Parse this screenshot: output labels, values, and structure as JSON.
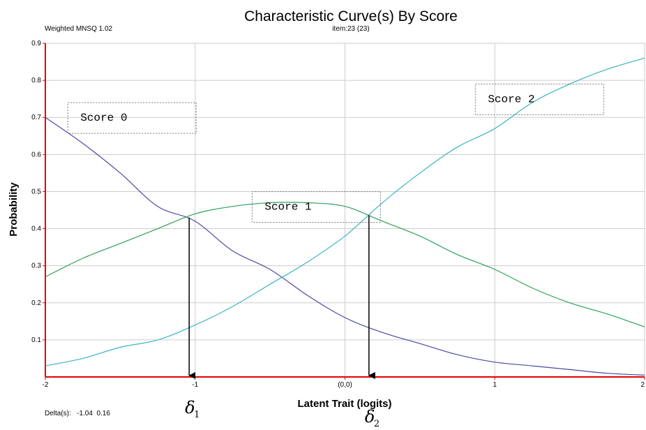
{
  "chart_data": {
    "type": "line",
    "title": "Characteristic Curve(s) By Score",
    "subtitle": "item:23 (23)",
    "xlabel": "Latent Trait (logits)",
    "ylabel": "Probability",
    "xlim": [
      -2,
      2
    ],
    "ylim": [
      0,
      0.9
    ],
    "x_ticks": [
      {
        "value": -2,
        "label": "-2"
      },
      {
        "value": -1,
        "label": "-1"
      },
      {
        "value": 0,
        "label": "(0,0)"
      },
      {
        "value": 1,
        "label": "1"
      },
      {
        "value": 2,
        "label": "2"
      }
    ],
    "y_ticks": [
      {
        "value": 0.1,
        "label": "0.1"
      },
      {
        "value": 0.2,
        "label": "0.2"
      },
      {
        "value": 0.3,
        "label": "0.3"
      },
      {
        "value": 0.4,
        "label": "0.4"
      },
      {
        "value": 0.5,
        "label": "0.5"
      },
      {
        "value": 0.6,
        "label": "0.6"
      },
      {
        "value": 0.7,
        "label": "0.7"
      },
      {
        "value": 0.8,
        "label": "0.8"
      },
      {
        "value": 0.9,
        "label": "0.9"
      }
    ],
    "grid": true,
    "weighted_mnsq_label": "Weighted MNSQ  1.02",
    "deltas_label": "Delta(s):   -1.04  0.16",
    "deltas": [
      -1.04,
      0.16
    ],
    "delta_marker_labels": [
      {
        "symbol": "δ",
        "subscript": "1"
      },
      {
        "symbol": "δ",
        "subscript": "2"
      }
    ],
    "series": [
      {
        "name": "Score 0",
        "color": "#4a4aa6",
        "x": [
          -2.0,
          -1.75,
          -1.5,
          -1.25,
          -1.0,
          -0.75,
          -0.5,
          -0.25,
          0.0,
          0.25,
          0.5,
          0.75,
          1.0,
          1.25,
          1.5,
          1.75,
          2.0
        ],
        "y": [
          0.7,
          0.63,
          0.55,
          0.46,
          0.42,
          0.34,
          0.29,
          0.22,
          0.16,
          0.12,
          0.09,
          0.06,
          0.04,
          0.03,
          0.02,
          0.01,
          0.005
        ]
      },
      {
        "name": "Score 1",
        "color": "#2ea05a",
        "x": [
          -2.0,
          -1.75,
          -1.5,
          -1.25,
          -1.0,
          -0.75,
          -0.5,
          -0.25,
          0.0,
          0.25,
          0.5,
          0.75,
          1.0,
          1.25,
          1.5,
          1.75,
          2.0
        ],
        "y": [
          0.27,
          0.32,
          0.36,
          0.4,
          0.44,
          0.46,
          0.47,
          0.47,
          0.46,
          0.42,
          0.38,
          0.33,
          0.29,
          0.24,
          0.2,
          0.17,
          0.135
        ]
      },
      {
        "name": "Score 2",
        "color": "#3cb4c0",
        "x": [
          -2.0,
          -1.75,
          -1.5,
          -1.25,
          -1.0,
          -0.75,
          -0.5,
          -0.25,
          0.0,
          0.25,
          0.5,
          0.75,
          1.0,
          1.25,
          1.5,
          1.75,
          2.0
        ],
        "y": [
          0.03,
          0.05,
          0.08,
          0.1,
          0.14,
          0.19,
          0.25,
          0.31,
          0.38,
          0.47,
          0.55,
          0.62,
          0.67,
          0.74,
          0.79,
          0.83,
          0.86
        ]
      }
    ],
    "annotations": [
      {
        "text": "Score 0",
        "x": -1.85,
        "y": 0.74
      },
      {
        "text": "Score 1",
        "x": -0.62,
        "y": 0.5
      },
      {
        "text": "Score 2",
        "x": 0.87,
        "y": 0.79
      }
    ],
    "colors": {
      "axis": "#e60000",
      "grid": "#cccccc",
      "arrow": "#000000",
      "annotation_border": "#777777"
    }
  }
}
